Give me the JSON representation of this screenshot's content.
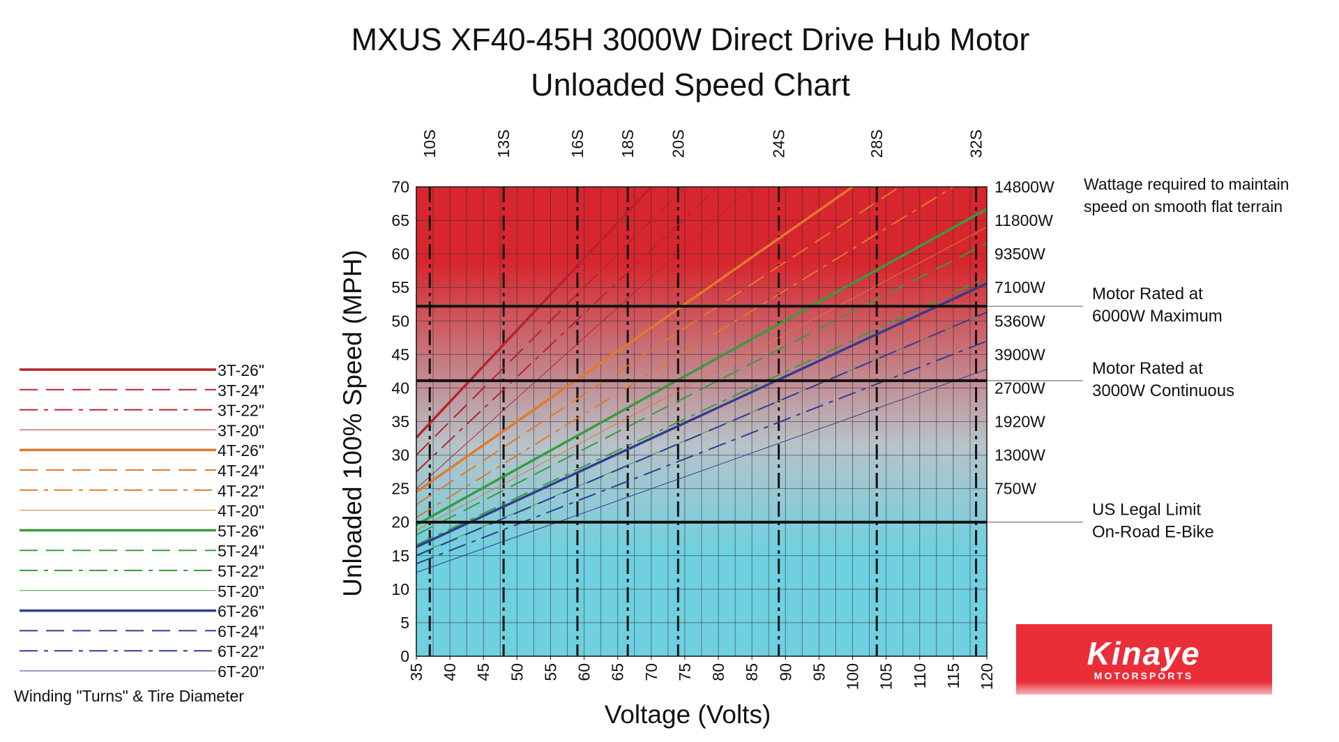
{
  "chart_data": {
    "type": "line",
    "title": "MXUS XF40-45H 3000W Direct Drive Hub Motor",
    "subtitle": "Unloaded Speed Chart",
    "xlabel": "Voltage (Volts)",
    "ylabel": "Unloaded 100% Speed (MPH)",
    "xlim": [
      35,
      120
    ],
    "ylim": [
      0,
      70
    ],
    "x_ticks": [
      "35",
      "40",
      "45",
      "50",
      "55",
      "60",
      "65",
      "70",
      "75",
      "80",
      "85",
      "90",
      "95",
      "100",
      "105",
      "110",
      "115",
      "120"
    ],
    "y_ticks": [
      "0",
      "5",
      "10",
      "15",
      "20",
      "25",
      "30",
      "35",
      "40",
      "45",
      "50",
      "55",
      "60",
      "65",
      "70"
    ],
    "grid": true,
    "background_colors": [
      "#d8262e",
      "#6fd0e0"
    ],
    "battery_series": [
      {
        "label": "10S",
        "voltage": 37
      },
      {
        "label": "13S",
        "voltage": 48
      },
      {
        "label": "16S",
        "voltage": 59
      },
      {
        "label": "18S",
        "voltage": 66.5
      },
      {
        "label": "20S",
        "voltage": 74
      },
      {
        "label": "24S",
        "voltage": 89
      },
      {
        "label": "28S",
        "voltage": 103.6
      },
      {
        "label": "32S",
        "voltage": 118.4
      }
    ],
    "wattage_axis": {
      "title_line1": "Wattage required to maintain",
      "title_line2": "speed on smooth flat terrain",
      "ticks": [
        {
          "label": "14800W",
          "mph": 70
        },
        {
          "label": "11800W",
          "mph": 65
        },
        {
          "label": "9350W",
          "mph": 60
        },
        {
          "label": "7100W",
          "mph": 55
        },
        {
          "label": "5360W",
          "mph": 50
        },
        {
          "label": "3900W",
          "mph": 45
        },
        {
          "label": "2700W",
          "mph": 40
        },
        {
          "label": "1920W",
          "mph": 35
        },
        {
          "label": "1300W",
          "mph": 30
        },
        {
          "label": "750W",
          "mph": 25
        }
      ]
    },
    "reference_lines": [
      {
        "mph": 52.2,
        "line1": "Motor Rated at",
        "line2": "6000W Maximum"
      },
      {
        "mph": 41.1,
        "line1": "Motor Rated at",
        "line2": "3000W Continuous"
      },
      {
        "mph": 20,
        "line1": "US Legal Limit",
        "line2": "On-Road E-Bike"
      }
    ],
    "legend_title": "Winding \"Turns\" & Tire Diameter",
    "series": [
      {
        "name": "3T-26\"",
        "color": "#b8232b",
        "dash": "solid",
        "width": 3.5,
        "x": [
          35,
          70
        ],
        "y": [
          32.6,
          70
        ]
      },
      {
        "name": "3T-24\"",
        "color": "#b8232b",
        "dash": "dash",
        "width": 2,
        "x": [
          35,
          75
        ],
        "y": [
          30.0,
          70
        ]
      },
      {
        "name": "3T-22\"",
        "color": "#b8232b",
        "dash": "dashdot",
        "width": 2,
        "x": [
          35,
          80
        ],
        "y": [
          27.5,
          70
        ]
      },
      {
        "name": "3T-20\"",
        "color": "#b8232b",
        "dash": "solid",
        "width": 1,
        "x": [
          35,
          85
        ],
        "y": [
          25.0,
          70
        ]
      },
      {
        "name": "4T-26\"",
        "color": "#e07a2b",
        "dash": "solid",
        "width": 3.5,
        "x": [
          35,
          100
        ],
        "y": [
          24.5,
          70
        ]
      },
      {
        "name": "4T-24\"",
        "color": "#e07a2b",
        "dash": "dash",
        "width": 2,
        "x": [
          35,
          107
        ],
        "y": [
          22.6,
          70
        ]
      },
      {
        "name": "4T-22\"",
        "color": "#e07a2b",
        "dash": "dashdot",
        "width": 2,
        "x": [
          35,
          115
        ],
        "y": [
          20.7,
          70
        ]
      },
      {
        "name": "4T-20\"",
        "color": "#e07a2b",
        "dash": "solid",
        "width": 1,
        "x": [
          35,
          120
        ],
        "y": [
          18.8,
          64
        ]
      },
      {
        "name": "5T-26\"",
        "color": "#3a9b3a",
        "dash": "solid",
        "width": 3.5,
        "x": [
          35,
          120
        ],
        "y": [
          19.6,
          66.7
        ]
      },
      {
        "name": "5T-24\"",
        "color": "#3a9b3a",
        "dash": "dash",
        "width": 2,
        "x": [
          35,
          120
        ],
        "y": [
          18.1,
          61.6
        ]
      },
      {
        "name": "5T-22\"",
        "color": "#3a9b3a",
        "dash": "dashdot",
        "width": 2,
        "x": [
          35,
          120
        ],
        "y": [
          16.6,
          56.5
        ]
      },
      {
        "name": "5T-20\"",
        "color": "#3a9b3a",
        "dash": "solid",
        "width": 1,
        "x": [
          35,
          120
        ],
        "y": [
          15.1,
          51.3
        ]
      },
      {
        "name": "6T-26\"",
        "color": "#2f3e91",
        "dash": "solid",
        "width": 3.5,
        "x": [
          35,
          120
        ],
        "y": [
          16.3,
          55.6
        ]
      },
      {
        "name": "6T-24\"",
        "color": "#2f3e91",
        "dash": "dash",
        "width": 2,
        "x": [
          35,
          120
        ],
        "y": [
          15.0,
          51.3
        ]
      },
      {
        "name": "6T-22\"",
        "color": "#2f3e91",
        "dash": "dashdot",
        "width": 2,
        "x": [
          35,
          120
        ],
        "y": [
          13.8,
          47.0
        ]
      },
      {
        "name": "6T-20\"",
        "color": "#2f3e91",
        "dash": "solid",
        "width": 1,
        "x": [
          35,
          120
        ],
        "y": [
          12.5,
          42.8
        ]
      }
    ]
  },
  "logo": {
    "name": "Kinaye",
    "tagline": "MOTORSPORTS",
    "color": "#ea2e38"
  }
}
